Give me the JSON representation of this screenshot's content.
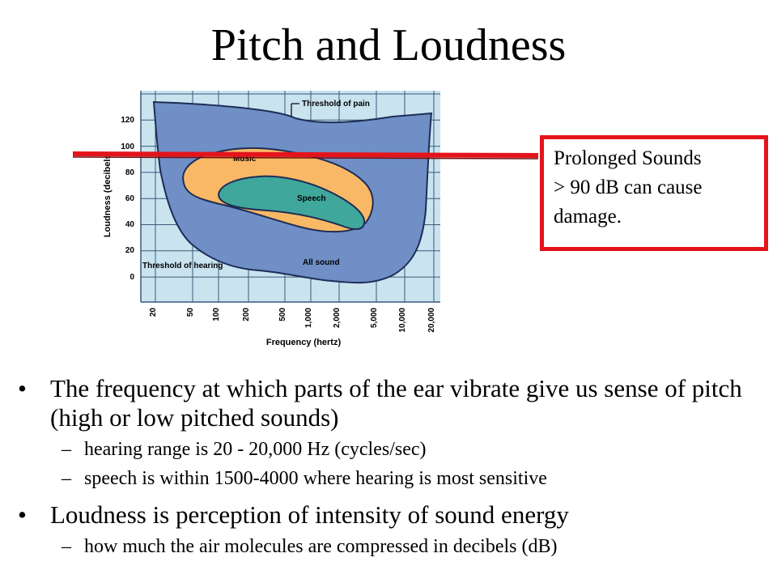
{
  "slide": {
    "title": "Pitch and Loudness"
  },
  "figure": {
    "ylabel": "Loudness (decibels)",
    "xlabel": "Frequency (hertz)",
    "y_ticks": [
      "120",
      "100",
      "80",
      "60",
      "40",
      "20",
      "0"
    ],
    "x_ticks": [
      "20",
      "50",
      "100",
      "200",
      "500",
      "1,000",
      "2,000",
      "5,000",
      "10,000",
      "20,000"
    ],
    "labels": {
      "threshold_pain": "Threshold of pain",
      "music": "Music",
      "speech": "Speech",
      "threshold_hearing": "Threshold of hearing",
      "all_sound": "All sound"
    },
    "colors": {
      "grid_bg": "#c9e3ef",
      "all_sound": "#6f8fc6",
      "music": "#f9b866",
      "speech": "#3fa79b",
      "marker_line": "#e4141b"
    }
  },
  "callout": {
    "line1": "Prolonged Sounds",
    "line2": "> 90 dB can cause",
    "line3": "damage.",
    "border_color": "#e4141b"
  },
  "bullets": [
    {
      "text": "The frequency at which parts of the ear vibrate give us sense of pitch (high or low pitched sounds)",
      "sub": [
        "hearing range is 20 - 20,000 Hz (cycles/sec)",
        "speech is within 1500-4000 where hearing is most sensitive"
      ]
    },
    {
      "text": "Loudness is perception of intensity of sound energy",
      "sub": [
        "how much the air molecules are compressed in decibels (dB)"
      ]
    }
  ]
}
